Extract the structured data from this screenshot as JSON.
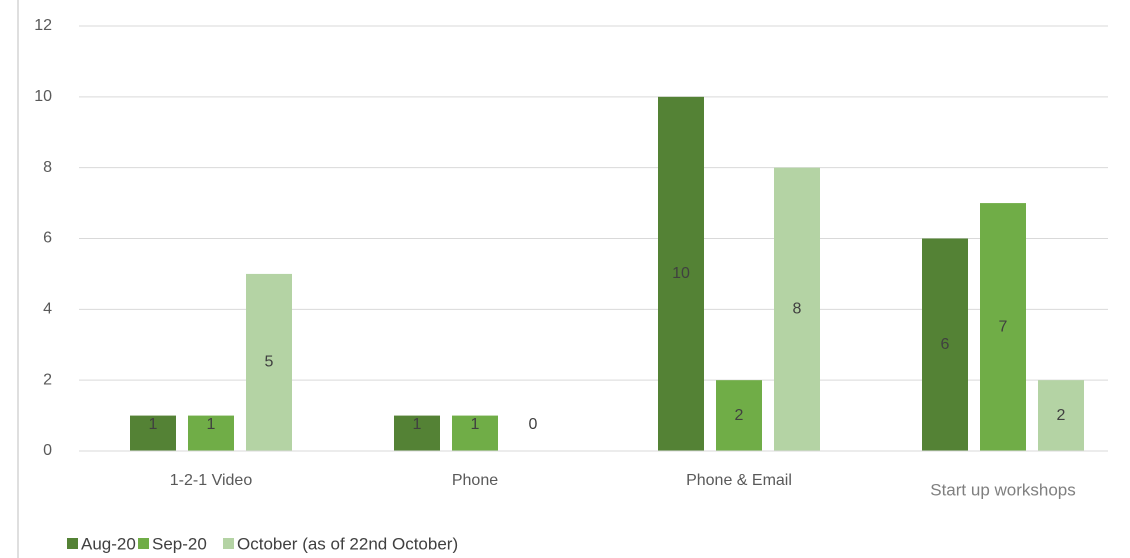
{
  "chart_data": {
    "type": "bar",
    "categories": [
      "1-2-1 Video",
      "Phone",
      "Phone & Email",
      "Start up workshops"
    ],
    "series": [
      {
        "name": "Aug-20",
        "color": "#548235",
        "values": [
          1,
          1,
          10,
          6
        ]
      },
      {
        "name": "Sep-20",
        "color": "#70ad47",
        "values": [
          1,
          1,
          2,
          7
        ]
      },
      {
        "name": "October (as of 22nd October)",
        "color": "#b4d3a4",
        "values": [
          5,
          0,
          8,
          2
        ]
      }
    ],
    "ylim": [
      0,
      12
    ],
    "yticks": [
      0,
      2,
      4,
      6,
      8,
      10,
      12
    ],
    "grid": true,
    "legend": "bottom"
  }
}
